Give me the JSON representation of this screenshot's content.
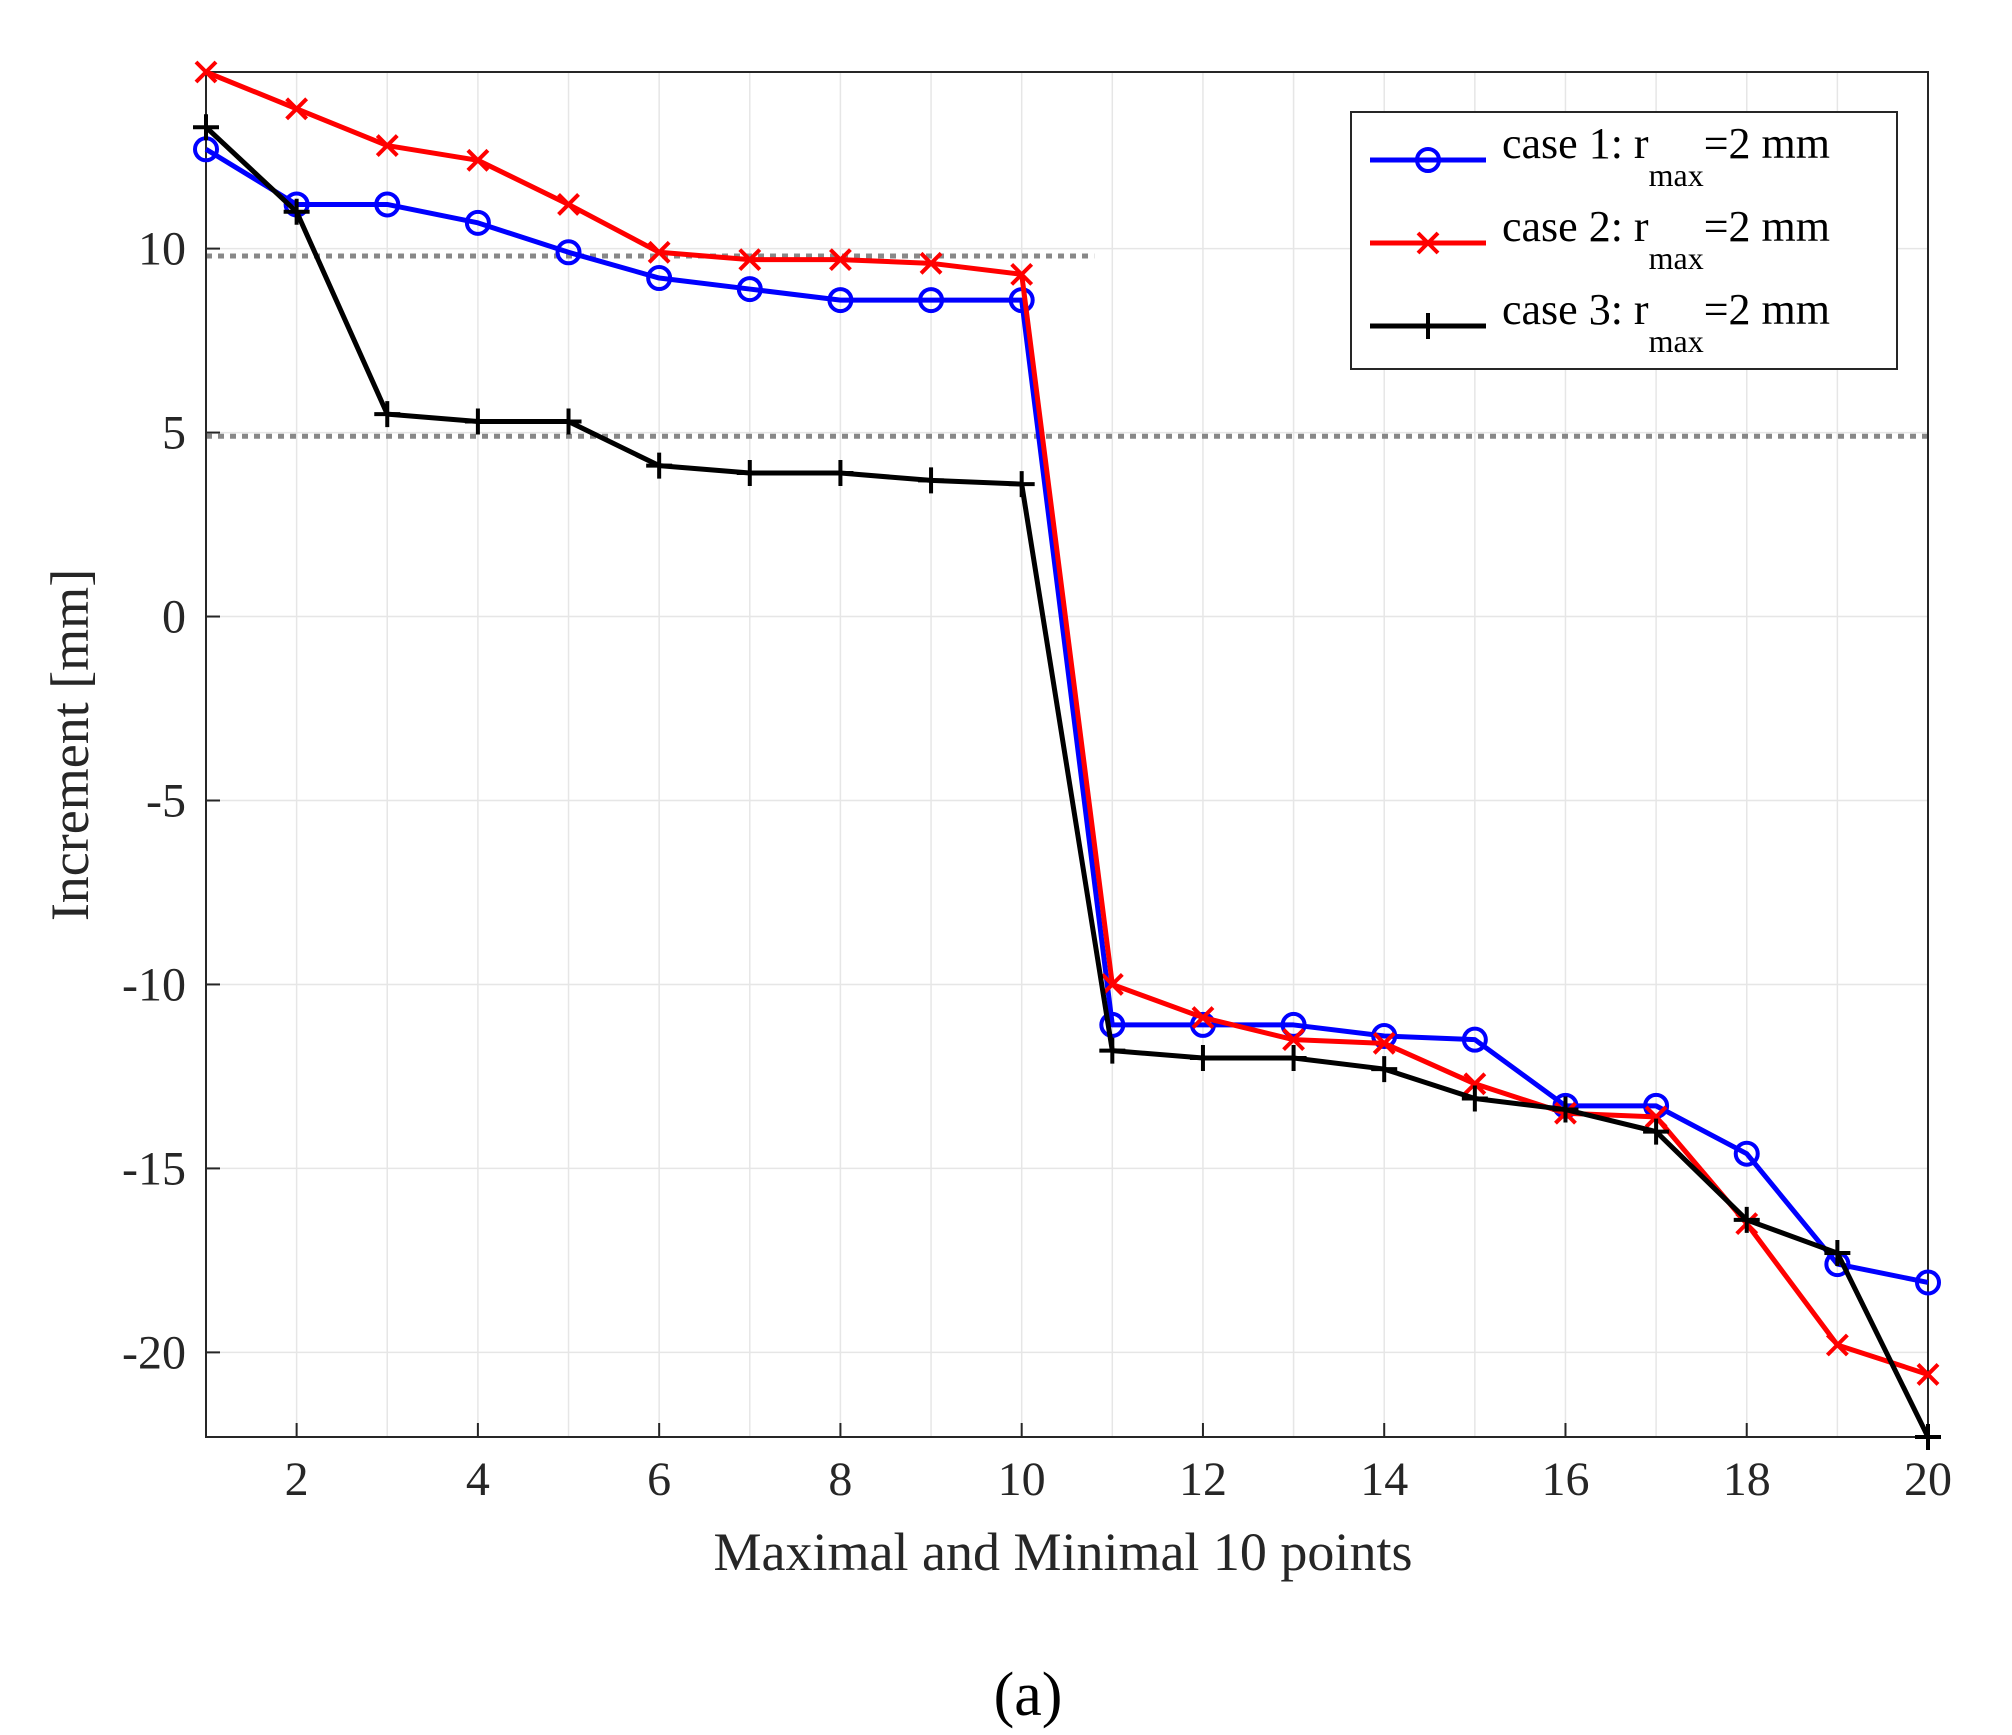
{
  "chart_data": {
    "type": "line",
    "panel_label": "(a)",
    "xlabel": "Maximal and Minimal 10 points",
    "ylabel": "Increment [mm]",
    "xlim": [
      1,
      20
    ],
    "ylim": [
      -22.3,
      14.8
    ],
    "xticks": [
      2,
      4,
      6,
      8,
      10,
      12,
      14,
      16,
      18,
      20
    ],
    "xtick_labels": [
      "2",
      "4",
      "6",
      "8",
      "10",
      "12",
      "14",
      "16",
      "18",
      "20"
    ],
    "yticks": [
      10,
      5,
      0,
      -5,
      -10,
      -15,
      -20
    ],
    "ytick_labels": [
      "10",
      "5",
      "0",
      "-5",
      "-10",
      "-15",
      "-20"
    ],
    "grid": true,
    "legend_position": "top-right",
    "x": [
      1,
      2,
      3,
      4,
      5,
      6,
      7,
      8,
      9,
      10,
      11,
      12,
      13,
      14,
      15,
      16,
      17,
      18,
      19,
      20
    ],
    "series": [
      {
        "legend": {
          "prefix": "case 1: r",
          "sub": "max",
          "suffix": "=2 mm"
        },
        "color": "#0000ff",
        "marker": "circle",
        "values": [
          12.7,
          11.2,
          11.2,
          10.7,
          9.9,
          9.2,
          8.9,
          8.6,
          8.6,
          8.6,
          -11.1,
          -11.1,
          -11.1,
          -11.4,
          -11.5,
          -13.3,
          -13.3,
          -14.6,
          -17.6,
          -18.1
        ]
      },
      {
        "legend": {
          "prefix": "case 2: r",
          "sub": "max",
          "suffix": "=2 mm"
        },
        "color": "#ff0000",
        "marker": "x",
        "values": [
          14.8,
          13.8,
          12.8,
          12.4,
          11.2,
          9.9,
          9.7,
          9.7,
          9.6,
          9.3,
          -10.0,
          -10.9,
          -11.5,
          -11.6,
          -12.7,
          -13.5,
          -13.6,
          -16.5,
          -19.8,
          -20.6
        ]
      },
      {
        "legend": {
          "prefix": "case 3: r",
          "sub": "max",
          "suffix": "=2 mm"
        },
        "color": "#000000",
        "marker": "plus",
        "values": [
          13.3,
          11.0,
          5.5,
          5.3,
          5.3,
          4.1,
          3.9,
          3.9,
          3.7,
          3.6,
          -11.8,
          -12.0,
          -12.0,
          -12.3,
          -13.1,
          -13.4,
          -14.0,
          -16.4,
          -17.3,
          -22.3
        ]
      }
    ],
    "reference_lines": [
      {
        "y": 9.8,
        "x_range": [
          1,
          10.8
        ],
        "color": "#888888",
        "style": "dotted"
      },
      {
        "y": 4.9,
        "x_range": [
          1,
          20
        ],
        "color": "#888888",
        "style": "dotted"
      }
    ]
  }
}
